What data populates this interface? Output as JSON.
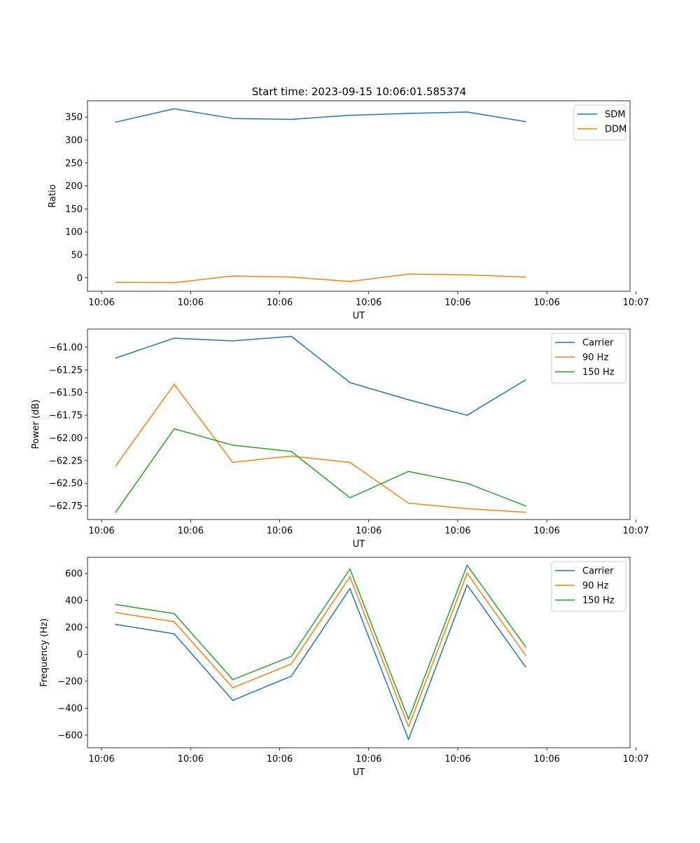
{
  "figure_title": "Start time: 2023-09-15 10:06:01.585374",
  "chart_data": [
    {
      "type": "line",
      "title": "Start time: 2023-09-15 10:06:01.585374",
      "xlabel": "UT",
      "ylabel": "Ratio",
      "x": [
        1,
        2,
        3,
        4,
        5,
        6,
        7,
        8
      ],
      "xlim": [
        0.52,
        9.78
      ],
      "ylim": [
        -29.3,
        385.4
      ],
      "x_ticks": [
        0.76,
        2.28,
        3.8,
        5.32,
        6.84,
        8.36,
        9.88
      ],
      "x_tick_labels": [
        "10:06",
        "10:06",
        "10:06",
        "10:06",
        "10:06",
        "10:06",
        "10:07"
      ],
      "y_ticks": [
        0,
        50,
        100,
        150,
        200,
        250,
        300,
        350
      ],
      "y_tick_labels": [
        "0",
        "50",
        "100",
        "150",
        "200",
        "250",
        "300",
        "350"
      ],
      "legend_position": "top-right",
      "series": [
        {
          "name": "SDM",
          "color": "#1f77b4",
          "values": [
            339,
            368,
            347,
            345,
            354,
            358,
            361,
            340
          ]
        },
        {
          "name": "DDM",
          "color": "#ff7f0e",
          "values": [
            -10,
            -10.5,
            4,
            1.5,
            -8,
            8,
            6.5,
            1.5
          ]
        }
      ]
    },
    {
      "type": "line",
      "title": "",
      "xlabel": "UT",
      "ylabel": "Power (dB)",
      "x": [
        1,
        2,
        3,
        4,
        5,
        6,
        7,
        8
      ],
      "xlim": [
        0.52,
        9.78
      ],
      "ylim": [
        -62.9,
        -60.8
      ],
      "x_ticks": [
        0.76,
        2.28,
        3.8,
        5.32,
        6.84,
        8.36,
        9.88
      ],
      "x_tick_labels": [
        "10:06",
        "10:06",
        "10:06",
        "10:06",
        "10:06",
        "10:06",
        "10:07"
      ],
      "y_ticks": [
        -61.0,
        -61.25,
        -61.5,
        -61.75,
        -62.0,
        -62.25,
        -62.5,
        -62.75
      ],
      "y_tick_labels": [
        "−61.00",
        "−61.25",
        "−61.50",
        "−61.75",
        "−62.00",
        "−62.25",
        "−62.50",
        "−62.75"
      ],
      "legend_position": "top-right",
      "series": [
        {
          "name": "Carrier",
          "color": "#1f77b4",
          "values": [
            -61.12,
            -60.9,
            -60.93,
            -60.88,
            -61.39,
            -61.58,
            -61.75,
            -61.36
          ]
        },
        {
          "name": "90 Hz",
          "color": "#ff7f0e",
          "values": [
            -62.31,
            -61.41,
            -62.27,
            -62.2,
            -62.27,
            -62.72,
            -62.78,
            -62.82
          ]
        },
        {
          "name": "150 Hz",
          "color": "#2ca02c",
          "values": [
            -62.82,
            -61.9,
            -62.08,
            -62.15,
            -62.66,
            -62.37,
            -62.5,
            -62.75
          ]
        }
      ]
    },
    {
      "type": "line",
      "title": "",
      "xlabel": "UT",
      "ylabel": "Frequency (Hz)",
      "x": [
        1,
        2,
        3,
        4,
        5,
        6,
        7,
        8
      ],
      "xlim": [
        0.52,
        9.78
      ],
      "ylim": [
        -694,
        720
      ],
      "x_ticks": [
        0.76,
        2.28,
        3.8,
        5.32,
        6.84,
        8.36,
        9.88
      ],
      "x_tick_labels": [
        "10:06",
        "10:06",
        "10:06",
        "10:06",
        "10:06",
        "10:06",
        "10:07"
      ],
      "y_ticks": [
        600,
        400,
        200,
        0,
        -200,
        -400,
        -600
      ],
      "y_tick_labels": [
        "600",
        "400",
        "200",
        "0",
        "−200",
        "−400",
        "−600"
      ],
      "legend_position": "top-right",
      "series": [
        {
          "name": "Carrier",
          "color": "#1f77b4",
          "values": [
            222,
            152,
            -342,
            -162,
            488,
            -632,
            515,
            -95
          ]
        },
        {
          "name": "90 Hz",
          "color": "#ff7f0e",
          "values": [
            310,
            242,
            -248,
            -72,
            575,
            -538,
            602,
            -8
          ]
        },
        {
          "name": "150 Hz",
          "color": "#2ca02c",
          "values": [
            370,
            302,
            -188,
            -15,
            633,
            -482,
            662,
            55
          ]
        }
      ]
    }
  ]
}
